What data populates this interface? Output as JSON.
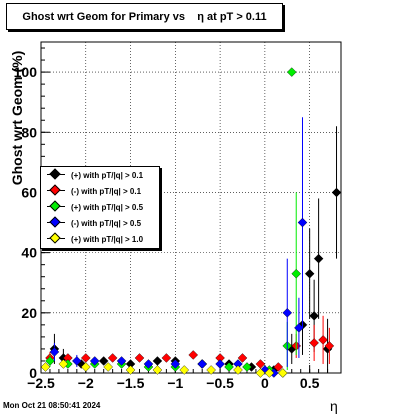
{
  "title": "Ghost wrt Geom for Primary vs    η at pT > 0.11",
  "timestamp": "Mon Oct 21 08:50:41 2024",
  "chart_data": {
    "type": "scatter",
    "title": "Ghost wrt Geom for Primary vs    η at pT > 0.11",
    "xlabel": "η",
    "ylabel": "Ghost wrt Geom (%)",
    "xlim": [
      -2.5,
      0.85
    ],
    "ylim": [
      0,
      110
    ],
    "x_ticks": [
      -2.5,
      -2,
      -1.5,
      -1,
      -0.5,
      0,
      0.5
    ],
    "x_tick_labels": [
      "−2.5",
      "−2",
      "−1.5",
      "−1",
      "−0.5",
      "0",
      "0.5"
    ],
    "y_ticks": [
      0,
      20,
      40,
      60,
      80,
      100
    ],
    "grid": true,
    "legend_position": "middle-left",
    "series": [
      {
        "name": "(+) with pT/|q| > 0.1",
        "color": "#000000",
        "x": [
          -2.35,
          -2.25,
          -2.05,
          -1.8,
          -1.5,
          -1.2,
          -1.0,
          -0.7,
          -0.4,
          -0.15,
          0.1,
          0.3,
          0.42,
          0.5,
          0.55,
          0.6,
          0.7,
          0.8
        ],
        "y": [
          8,
          5,
          3,
          4,
          3,
          4,
          4,
          3,
          3,
          2,
          1,
          8,
          16,
          33,
          19,
          38,
          8,
          60
        ],
        "err": [
          5,
          3,
          1,
          1,
          1,
          1,
          1,
          1,
          1,
          1,
          1,
          5,
          10,
          15,
          12,
          20,
          10,
          22
        ]
      },
      {
        "name": "(-) with pT/|q| > 0.1",
        "color": "#ff0000",
        "x": [
          -2.4,
          -2.2,
          -2.0,
          -1.7,
          -1.4,
          -1.1,
          -0.8,
          -0.5,
          -0.25,
          -0.05,
          0.15,
          0.35,
          0.55,
          0.65,
          0.72
        ],
        "y": [
          5,
          5,
          5,
          5,
          5,
          5,
          6,
          5,
          5,
          3,
          2,
          9,
          10,
          11,
          9
        ],
        "err": [
          2,
          1,
          1,
          1,
          1,
          1,
          1,
          1,
          1,
          1,
          1,
          4,
          6,
          8,
          6
        ]
      },
      {
        "name": "(+) with pT/|q| > 0.5",
        "color": "#00ee00",
        "x": [
          -2.4,
          -2.2,
          -1.9,
          -1.6,
          -1.3,
          -1.0,
          -0.7,
          -0.4,
          -0.2,
          0.05,
          0.2,
          0.25,
          0.3,
          0.35
        ],
        "y": [
          4,
          3,
          3,
          3,
          2,
          2,
          3,
          2,
          2,
          1,
          0,
          9,
          100,
          33
        ],
        "err": [
          2,
          1,
          1,
          1,
          1,
          1,
          1,
          1,
          1,
          1,
          1,
          8,
          0,
          27
        ]
      },
      {
        "name": "(-) with pT/|q| > 0.5",
        "color": "#0000ff",
        "x": [
          -2.35,
          -2.1,
          -1.9,
          -1.6,
          -1.3,
          -1.0,
          -0.7,
          -0.5,
          -0.3,
          0.0,
          0.1,
          0.25,
          0.38,
          0.42
        ],
        "y": [
          7,
          4,
          4,
          4,
          3,
          3,
          3,
          3,
          3,
          1,
          0,
          20,
          15,
          50
        ],
        "err": [
          3,
          2,
          1,
          1,
          1,
          1,
          1,
          1,
          1,
          1,
          1,
          18,
          10,
          35
        ]
      },
      {
        "name": "(+) with pT/|q| > 1.0",
        "color": "#ffff00",
        "x": [
          -2.45,
          -2.25,
          -2.0,
          -1.75,
          -1.5,
          -1.2,
          -0.9,
          -0.6,
          -0.3,
          -0.05,
          0.05,
          0.2
        ],
        "y": [
          2,
          3,
          2,
          2,
          1,
          1,
          1,
          1,
          1,
          0,
          0,
          0
        ],
        "err": [
          1,
          1,
          1,
          1,
          1,
          1,
          1,
          1,
          1,
          1,
          1,
          1
        ]
      }
    ]
  }
}
